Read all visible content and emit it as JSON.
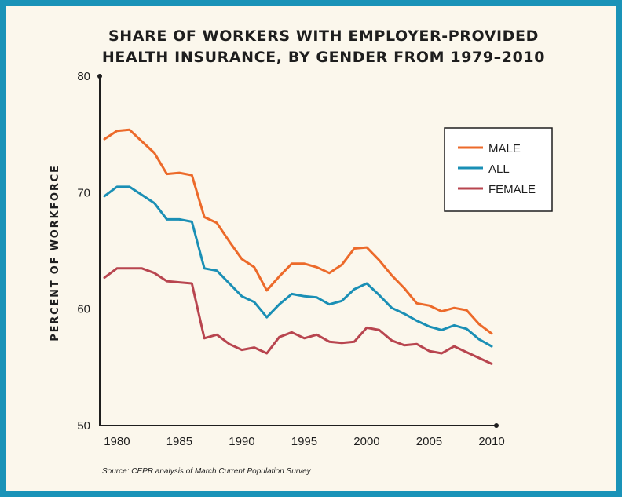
{
  "chart_data": {
    "type": "line",
    "title_lines": [
      "SHARE OF WORKERS WITH EMPLOYER-PROVIDED",
      "HEALTH INSURANCE, BY GENDER FROM 1979–2010"
    ],
    "ylabel": "PERCENT OF WORKFORCE",
    "xlabel": "",
    "x": [
      1979,
      1980,
      1981,
      1982,
      1983,
      1984,
      1985,
      1986,
      1987,
      1988,
      1989,
      1990,
      1991,
      1992,
      1993,
      1994,
      1995,
      1996,
      1997,
      1998,
      1999,
      2000,
      2001,
      2002,
      2003,
      2004,
      2005,
      2006,
      2007,
      2008,
      2009,
      2010
    ],
    "xlim": [
      1979,
      2010
    ],
    "ylim": [
      50,
      80
    ],
    "xticks": [
      "1980",
      "1985",
      "1990",
      "1995",
      "2000",
      "2005",
      "2010"
    ],
    "xtick_values": [
      1980,
      1985,
      1990,
      1995,
      2000,
      2005,
      2010
    ],
    "yticks": [
      "50",
      "60",
      "70",
      "80"
    ],
    "ytick_values": [
      50,
      60,
      70,
      80
    ],
    "legend_position": "top-right",
    "grid": false,
    "series": [
      {
        "name": "MALE",
        "color": "#ec6a2a",
        "values": [
          74.6,
          75.3,
          75.4,
          74.4,
          73.4,
          71.6,
          71.7,
          71.5,
          67.9,
          67.4,
          65.8,
          64.3,
          63.6,
          61.6,
          62.8,
          63.9,
          63.9,
          63.6,
          63.1,
          63.8,
          65.2,
          65.3,
          64.2,
          62.9,
          61.8,
          60.5,
          60.3,
          59.8,
          60.1,
          59.9,
          58.7,
          57.9
        ]
      },
      {
        "name": "ALL",
        "color": "#1a8fb5",
        "values": [
          69.7,
          70.5,
          70.5,
          69.8,
          69.1,
          67.7,
          67.7,
          67.5,
          63.5,
          63.3,
          62.2,
          61.1,
          60.6,
          59.3,
          60.4,
          61.3,
          61.1,
          61.0,
          60.4,
          60.7,
          61.7,
          62.2,
          61.2,
          60.1,
          59.6,
          59.0,
          58.5,
          58.2,
          58.6,
          58.3,
          57.4,
          56.8
        ]
      },
      {
        "name": "FEMALE",
        "color": "#b8454f",
        "values": [
          62.7,
          63.5,
          63.5,
          63.5,
          63.1,
          62.4,
          62.3,
          62.2,
          57.5,
          57.8,
          57.0,
          56.5,
          56.7,
          56.2,
          57.6,
          58.0,
          57.5,
          57.8,
          57.2,
          57.1,
          57.2,
          58.4,
          58.2,
          57.3,
          56.9,
          57.0,
          56.4,
          56.2,
          56.8,
          56.3,
          55.8,
          55.3
        ]
      }
    ]
  },
  "source": "Source: CEPR analysis of March Current Population Survey"
}
